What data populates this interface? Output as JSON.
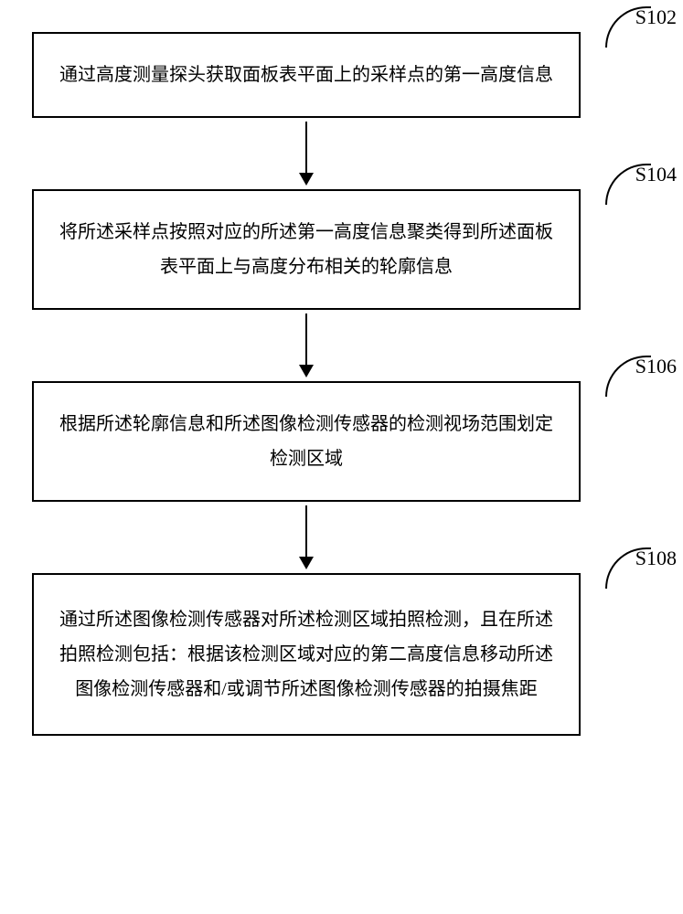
{
  "flowchart": {
    "background_color": "#ffffff",
    "border_color": "#000000",
    "border_width": 2,
    "text_color": "#000000",
    "font_size": 20,
    "label_font_size": 22,
    "font_family": "SimSun",
    "arrow": {
      "line_width": 2,
      "line_height": 56,
      "head_width": 16,
      "head_height": 14,
      "color": "#000000"
    },
    "steps": [
      {
        "id": "s102",
        "label": "S102",
        "text": "通过高度测量探头获取面板表平面上的采样点的第一高度信息",
        "height_class": "normal"
      },
      {
        "id": "s104",
        "label": "S104",
        "text": "将所述采样点按照对应的所述第一高度信息聚类得到所述面板表平面上与高度分布相关的轮廓信息",
        "height_class": "normal"
      },
      {
        "id": "s106",
        "label": "S106",
        "text": "根据所述轮廓信息和所述图像检测传感器的检测视场范围划定检测区域",
        "height_class": "normal"
      },
      {
        "id": "s108",
        "label": "S108",
        "text": "通过所述图像检测传感器对所述检测区域拍照检测，且在所述拍照检测包括：根据该检测区域对应的第二高度信息移动所述图像检测传感器和/或调节所述图像检测传感器的拍摄焦距",
        "height_class": "tall"
      }
    ]
  }
}
